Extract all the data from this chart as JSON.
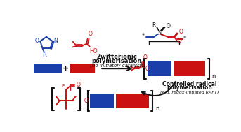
{
  "bg_color": "#ffffff",
  "blue": "#1a3faa",
  "red": "#cc1111",
  "black": "#111111",
  "text_zwitt1": "Zwitterionic",
  "text_zwitt2": "polymerisation",
  "text_zwitt3": "(no initiator/ catalyst)",
  "text_ctrl1": "Controlled radical",
  "text_ctrl2": "polymerisation",
  "text_ctrl3": "(e.g. redox-initiated RAFT)"
}
